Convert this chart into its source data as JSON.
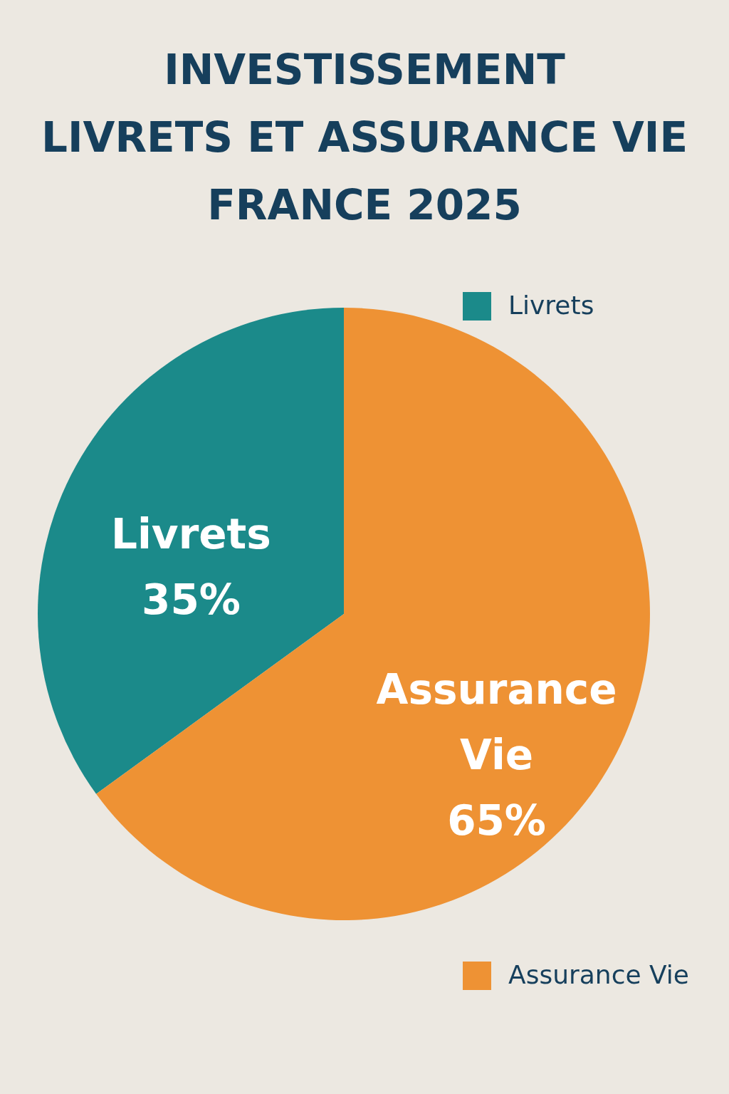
{
  "chart_data": {
    "type": "pie",
    "title": "INVESTISSEMENT\nLIVRETS ET ASSURANCE VIE\nFRANCE 2025",
    "categories": [
      "Livrets",
      "Assurance Vie"
    ],
    "values": [
      35,
      65
    ],
    "colors": [
      "#1b8a8a",
      "#ee9234"
    ],
    "value_labels": [
      "35%",
      "65%"
    ],
    "legend": "right"
  }
}
